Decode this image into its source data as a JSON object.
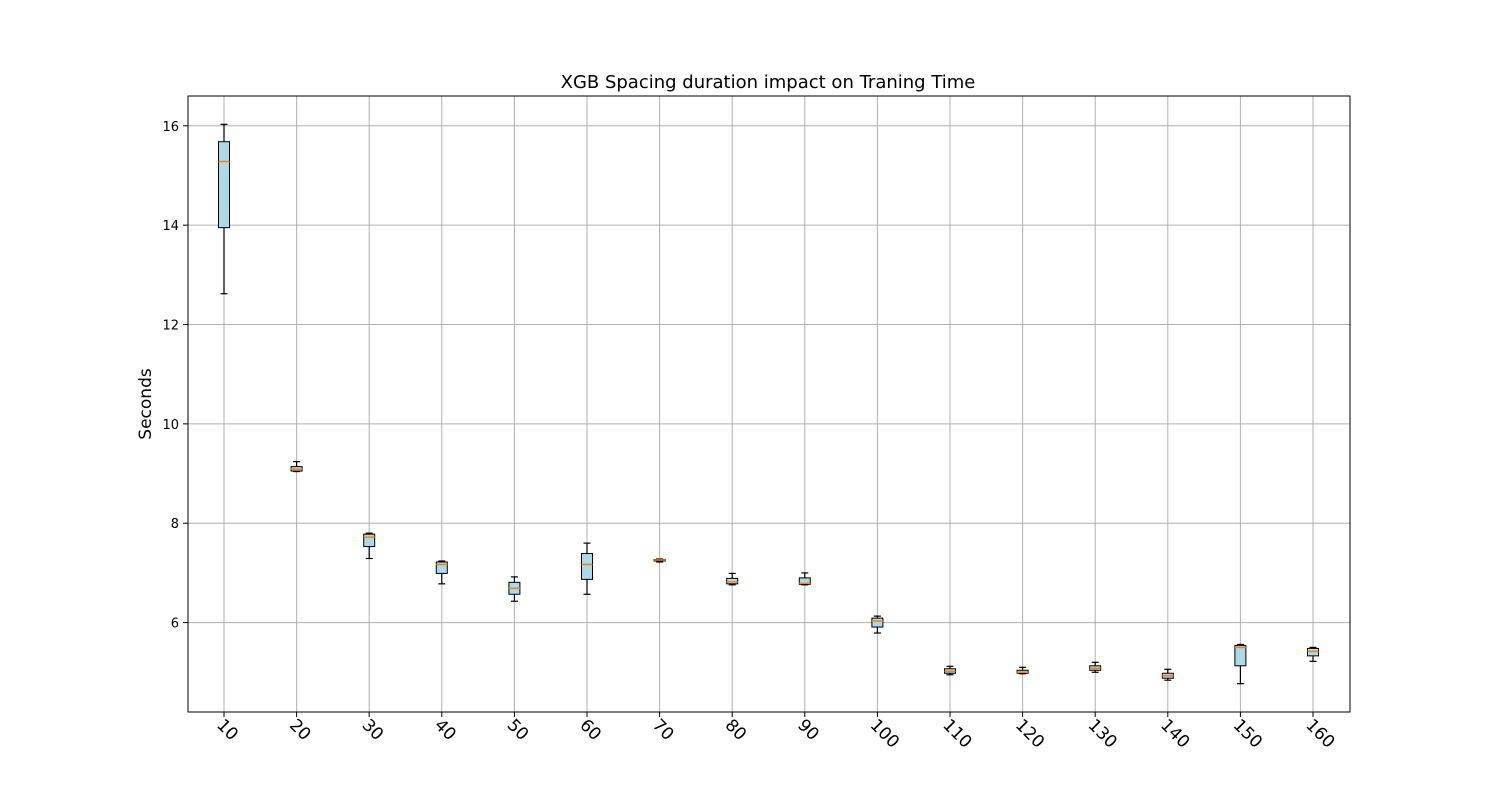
{
  "chart_data": {
    "type": "boxplot",
    "title": "XGB Spacing duration impact on Traning Time",
    "xlabel": "",
    "ylabel": "Seconds",
    "ylim": [
      4.2,
      16.6
    ],
    "yticks": [
      6,
      8,
      10,
      12,
      14,
      16
    ],
    "grid": true,
    "box_color": "#add8e6",
    "median_color": "#ff7f0e",
    "categories": [
      "10",
      "20",
      "30",
      "40",
      "50",
      "60",
      "70",
      "80",
      "90",
      "100",
      "110",
      "120",
      "130",
      "140",
      "150",
      "160"
    ],
    "boxes": [
      {
        "whislo": 12.62,
        "q1": 13.95,
        "med": 15.28,
        "q3": 15.68,
        "whishi": 16.03
      },
      {
        "whislo": 9.04,
        "q1": 9.05,
        "med": 9.09,
        "q3": 9.14,
        "whishi": 9.24
      },
      {
        "whislo": 7.29,
        "q1": 7.53,
        "med": 7.72,
        "q3": 7.78,
        "whishi": 7.8
      },
      {
        "whislo": 6.78,
        "q1": 6.99,
        "med": 7.17,
        "q3": 7.22,
        "whishi": 7.24
      },
      {
        "whislo": 6.43,
        "q1": 6.57,
        "med": 6.69,
        "q3": 6.81,
        "whishi": 6.92
      },
      {
        "whislo": 6.57,
        "q1": 6.87,
        "med": 7.17,
        "q3": 7.39,
        "whishi": 7.6
      },
      {
        "whislo": 7.22,
        "q1": 7.24,
        "med": 7.26,
        "q3": 7.27,
        "whishi": 7.28
      },
      {
        "whislo": 6.76,
        "q1": 6.78,
        "med": 6.82,
        "q3": 6.89,
        "whishi": 6.99
      },
      {
        "whislo": 6.76,
        "q1": 6.77,
        "med": 6.79,
        "q3": 6.9,
        "whishi": 7.0
      },
      {
        "whislo": 5.79,
        "q1": 5.91,
        "med": 6.03,
        "q3": 6.09,
        "whishi": 6.13
      },
      {
        "whislo": 4.95,
        "q1": 4.98,
        "med": 5.02,
        "q3": 5.07,
        "whishi": 5.12
      },
      {
        "whislo": 4.97,
        "q1": 4.98,
        "med": 5.0,
        "q3": 5.04,
        "whishi": 5.1
      },
      {
        "whislo": 5.0,
        "q1": 5.04,
        "med": 5.08,
        "q3": 5.13,
        "whishi": 5.2
      },
      {
        "whislo": 4.84,
        "q1": 4.88,
        "med": 4.93,
        "q3": 4.98,
        "whishi": 5.06
      },
      {
        "whislo": 4.77,
        "q1": 5.13,
        "med": 5.5,
        "q3": 5.54,
        "whishi": 5.56
      },
      {
        "whislo": 5.22,
        "q1": 5.33,
        "med": 5.42,
        "q3": 5.48,
        "whishi": 5.5
      }
    ]
  }
}
